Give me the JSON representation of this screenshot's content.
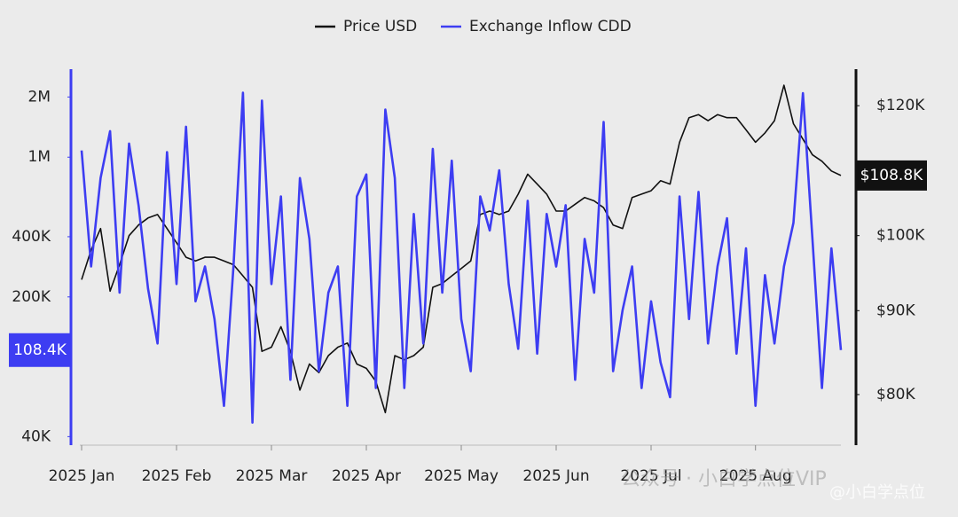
{
  "chart_data": {
    "type": "line",
    "categories": [
      "2025 Jan",
      null,
      null,
      null,
      null,
      null,
      null,
      null,
      null,
      null,
      "2025 Feb",
      null,
      null,
      null,
      null,
      null,
      null,
      null,
      null,
      null,
      "2025 Mar",
      null,
      null,
      null,
      null,
      null,
      null,
      null,
      null,
      null,
      "2025 Apr",
      null,
      null,
      null,
      null,
      null,
      null,
      null,
      null,
      null,
      "2025 May",
      null,
      null,
      null,
      null,
      null,
      null,
      null,
      null,
      null,
      "2025 Jun",
      null,
      null,
      null,
      null,
      null,
      null,
      null,
      null,
      null,
      "2025 Jul",
      null,
      null,
      null,
      null,
      null,
      null,
      null,
      null,
      null,
      null,
      "2025 Aug",
      null,
      null,
      null,
      null,
      null,
      null,
      null,
      null,
      null
    ],
    "series": [
      {
        "name": "Price USD",
        "color": "#111111",
        "axis": "y2",
        "last_label": {
          "value": 108800,
          "label": "$108.8K"
        },
        "values": [
          94000,
          98000,
          101000,
          92500,
          96000,
          100000,
          101500,
          102500,
          103000,
          101000,
          99000,
          97000,
          96500,
          97000,
          97000,
          96500,
          96000,
          94500,
          93000,
          85000,
          85500,
          88000,
          85000,
          80500,
          83500,
          82500,
          84500,
          85500,
          86000,
          83500,
          83000,
          81500,
          78000,
          84500,
          84000,
          84500,
          85500,
          93000,
          93500,
          94500,
          95500,
          96500,
          103000,
          103500,
          103000,
          103500,
          106000,
          109000,
          107500,
          106000,
          103500,
          103500,
          104500,
          105500,
          105000,
          104000,
          101500,
          101000,
          105500,
          106000,
          106500,
          108000,
          107500,
          114000,
          118000,
          118500,
          117500,
          118500,
          118000,
          118000,
          116000,
          114000,
          115500,
          117500,
          123500,
          117000,
          114500,
          112000,
          111000,
          109500,
          108800
        ]
      },
      {
        "name": "Exchange Inflow CDD",
        "color": "#3d3df2",
        "axis": "y",
        "last_label": {
          "value": 108400,
          "label": "108.4K"
        },
        "values": [
          1080000,
          284000,
          786000,
          1350000,
          210000,
          1170000,
          575000,
          220000,
          117000,
          1060000,
          232000,
          1420000,
          190000,
          284000,
          155000,
          57000,
          284000,
          2100000,
          47000,
          1920000,
          232000,
          636000,
          77000,
          786000,
          390000,
          85000,
          210000,
          284000,
          57000,
          636000,
          820000,
          70000,
          1730000,
          786000,
          70000,
          520000,
          117000,
          1100000,
          210000,
          960000,
          155000,
          85000,
          636000,
          430000,
          860000,
          232000,
          110000,
          605000,
          104000,
          520000,
          284000,
          575000,
          77000,
          390000,
          210000,
          1500000,
          85000,
          172000,
          284000,
          70000,
          190000,
          94000,
          63000,
          636000,
          155000,
          670000,
          117000,
          284000,
          495000,
          104000,
          350000,
          57000,
          257000,
          117000,
          284000,
          470000,
          2090000,
          390000,
          70000,
          350000,
          108400
        ]
      }
    ],
    "ylim": [
      37000,
      2700000
    ],
    "yscale": "log",
    "yticks": [
      {
        "value": 40000,
        "label": "40K"
      },
      {
        "value": 200000,
        "label": "200K"
      },
      {
        "value": 400000,
        "label": "400K"
      },
      {
        "value": 1000000,
        "label": "1M"
      },
      {
        "value": 2000000,
        "label": "2M"
      }
    ],
    "y2lim": [
      74700,
      126000
    ],
    "y2scale": "log",
    "y2ticks": [
      {
        "value": 80000,
        "label": "$80K"
      },
      {
        "value": 90000,
        "label": "$90K"
      },
      {
        "value": 100000,
        "label": "$100K"
      },
      {
        "value": 120000,
        "label": "$120K"
      }
    ],
    "legend": "top",
    "grid": false,
    "watermark": [
      "公众号 · 小白学点位VIP",
      "@小白学点位"
    ]
  }
}
